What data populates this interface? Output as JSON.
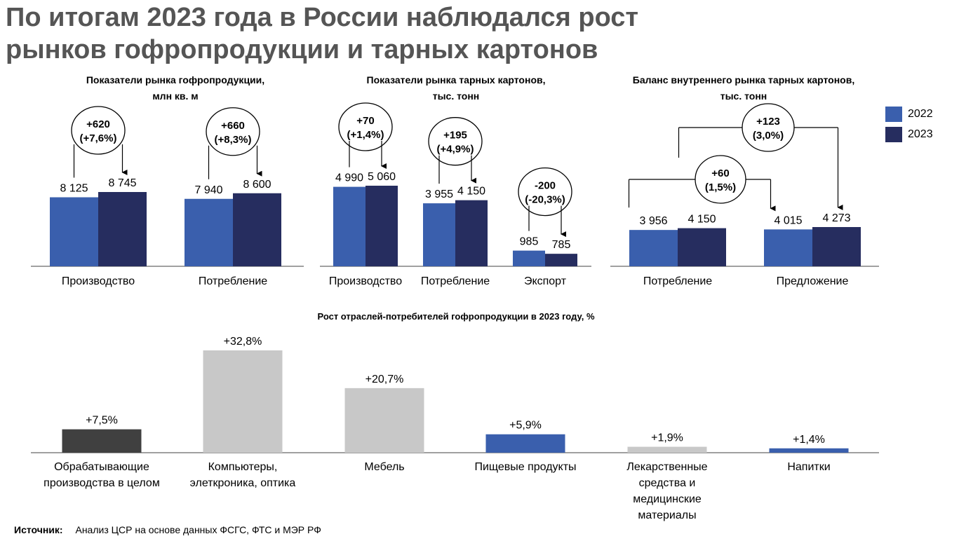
{
  "title": "По итогам 2023 года в России наблюдался рост рынков гофропродукции и тарных картонов",
  "title_line1": "По итогам 2023 года в России наблюдался рост",
  "title_line2": "рынков гофропродукции и тарных картонов",
  "colors": {
    "y2022": "#3a5fad",
    "y2023": "#262d5f",
    "grey_dark": "#404040",
    "grey_light": "#c8c8c8",
    "blue": "#3a5fad"
  },
  "legend": {
    "y2022": "2022",
    "y2023": "2023"
  },
  "chart_data": [
    {
      "type": "bar",
      "title": "Показатели рынка гофропродукции,",
      "subtitle": "млн кв. м",
      "categories": [
        "Производство",
        "Потребление"
      ],
      "series": [
        {
          "name": "2022",
          "values": [
            8125,
            7940
          ],
          "labels": [
            "8 125",
            "7 940"
          ]
        },
        {
          "name": "2023",
          "values": [
            8745,
            8600
          ],
          "labels": [
            "8 745",
            "8 600"
          ]
        }
      ],
      "annotations": [
        {
          "category": "Производство",
          "line1": "+620",
          "line2": "(+7,6%)"
        },
        {
          "category": "Потребление",
          "line1": "+660",
          "line2": "(+8,3%)"
        }
      ]
    },
    {
      "type": "bar",
      "title": "Показатели рынка тарных картонов,",
      "subtitle": "тыс. тонн",
      "categories": [
        "Производство",
        "Потребление",
        "Экспорт"
      ],
      "series": [
        {
          "name": "2022",
          "values": [
            4990,
            3955,
            985
          ],
          "labels": [
            "4 990",
            "3 955",
            "985"
          ]
        },
        {
          "name": "2023",
          "values": [
            5060,
            4150,
            785
          ],
          "labels": [
            "5 060",
            "4 150",
            "785"
          ]
        }
      ],
      "annotations": [
        {
          "category": "Производство",
          "line1": "+70",
          "line2": "(+1,4%)"
        },
        {
          "category": "Потребление",
          "line1": "+195",
          "line2": "(+4,9%)"
        },
        {
          "category": "Экспорт",
          "line1": "-200",
          "line2": "(-20,3%)"
        }
      ]
    },
    {
      "type": "bar",
      "title": "Баланс внутреннего рынка тарных картонов,",
      "subtitle": "тыс. тонн",
      "categories": [
        "Потребление",
        "Предложение"
      ],
      "series": [
        {
          "name": "2022",
          "values": [
            3956,
            4015
          ],
          "labels": [
            "3 956",
            "4 015"
          ]
        },
        {
          "name": "2023",
          "values": [
            4150,
            4273
          ],
          "labels": [
            "4 150",
            "4 273"
          ]
        }
      ],
      "annotations": [
        {
          "from": "Потребление 2022",
          "to": "Предложение 2022",
          "line1": "+60",
          "line2": "(1,5%)"
        },
        {
          "from": "Потребление 2023",
          "to": "Предложение 2023",
          "line1": "+123",
          "line2": "(3,0%)"
        }
      ]
    },
    {
      "type": "bar",
      "title": "Рост отраслей-потребителей гофропродукции в 2023 году, %",
      "categories": [
        [
          "Обрабатывающие",
          "производства в целом"
        ],
        [
          "Компьютеры,",
          "элеткроника, оптика"
        ],
        [
          "Мебель"
        ],
        [
          "Пищевые продукты"
        ],
        [
          "Лекарственные",
          "средства и",
          "медицинские",
          "материалы"
        ],
        [
          "Напитки"
        ]
      ],
      "values": [
        7.5,
        32.8,
        20.7,
        5.9,
        1.9,
        1.4
      ],
      "labels": [
        "+7,5%",
        "+32,8%",
        "+20,7%",
        "+5,9%",
        "+1,9%",
        "+1,4%"
      ],
      "color_keys": [
        "grey_dark",
        "grey_light",
        "grey_light",
        "blue",
        "grey_light",
        "blue"
      ]
    }
  ],
  "source": {
    "label": "Источник:",
    "text": "Анализ ЦСР на основе данных ФСГС, ФТС и МЭР РФ"
  }
}
